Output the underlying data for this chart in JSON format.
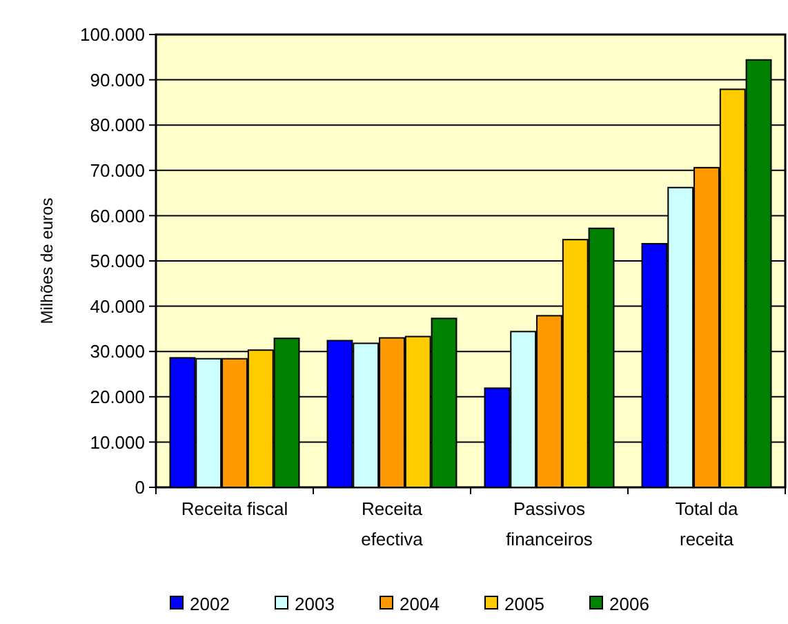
{
  "chart_data": {
    "type": "bar",
    "ylabel": "Milhões de euros",
    "categories": [
      "Receita fiscal",
      "Receita\nefectiva",
      "Passivos\nfinanceiros",
      "Total da\nreceita"
    ],
    "series": [
      {
        "name": "2002",
        "color": "#0000ff",
        "values": [
          28600,
          32400,
          21900,
          53800
        ]
      },
      {
        "name": "2003",
        "color": "#ccffff",
        "values": [
          28400,
          31800,
          34400,
          66200
        ]
      },
      {
        "name": "2004",
        "color": "#ff9900",
        "values": [
          28400,
          33000,
          37900,
          70600
        ]
      },
      {
        "name": "2005",
        "color": "#ffcc00",
        "values": [
          30300,
          33300,
          54700,
          87900
        ]
      },
      {
        "name": "2006",
        "color": "#008000",
        "values": [
          32900,
          37300,
          57200,
          94400
        ]
      }
    ],
    "ylim": [
      0,
      100000
    ],
    "yticks": [
      {
        "value": 0,
        "label": "0"
      },
      {
        "value": 10000,
        "label": "10.000"
      },
      {
        "value": 20000,
        "label": "20.000"
      },
      {
        "value": 30000,
        "label": "30.000"
      },
      {
        "value": 40000,
        "label": "40.000"
      },
      {
        "value": 50000,
        "label": "50.000"
      },
      {
        "value": 60000,
        "label": "60.000"
      },
      {
        "value": 70000,
        "label": "70.000"
      },
      {
        "value": 80000,
        "label": "80.000"
      },
      {
        "value": 90000,
        "label": "90.000"
      },
      {
        "value": 100000,
        "label": "100.000"
      }
    ],
    "grid": "y",
    "legend": "bottom"
  }
}
